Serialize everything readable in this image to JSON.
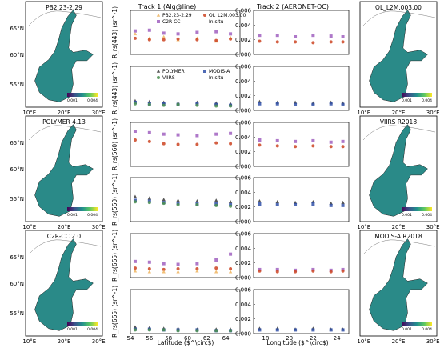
{
  "maps": [
    {
      "label": "PB2.23-2.29",
      "side": "left",
      "cb_min": "0.001",
      "cb_max": "0.004",
      "lat_labels": [
        "65°N",
        "60°N",
        "55°N"
      ],
      "lon_labels": [
        "10°E",
        "20°E",
        "30°E"
      ]
    },
    {
      "label": "POLYMER 4.13",
      "side": "left",
      "cb_min": "0.001",
      "cb_max": "0.004",
      "lat_labels": [
        "65°N",
        "60°N",
        "55°N"
      ],
      "lon_labels": [
        "10°E",
        "20°E",
        "30°E"
      ]
    },
    {
      "label": "C2R-CC 2.0",
      "side": "left",
      "cb_min": "0.001",
      "cb_max": "0.004",
      "lat_labels": [
        "65°N",
        "60°N",
        "55°N"
      ],
      "lon_labels": [
        "10°E",
        "20°E",
        "30°E"
      ]
    },
    {
      "label": "OL_L2M.003.00",
      "side": "right",
      "cb_min": "0.001",
      "cb_max": "0.004",
      "lat_labels": [
        "65°N",
        "60°N",
        "55°N"
      ],
      "lon_labels": [
        "10°E",
        "20°E",
        "30°E"
      ]
    },
    {
      "label": "VIIRS R2018",
      "side": "right",
      "cb_min": "0.001",
      "cb_max": "0.004",
      "lat_labels": [
        "65°N",
        "60°N",
        "55°N"
      ],
      "lon_labels": [
        "10°E",
        "20°E",
        "30°E"
      ]
    },
    {
      "label": "MODIS-A R2018",
      "side": "right",
      "cb_min": "0.001",
      "cb_max": "0.004",
      "lat_labels": [
        "65°N",
        "60°N",
        "55°N"
      ],
      "lon_labels": [
        "10°E",
        "20°E",
        "30°E"
      ]
    }
  ],
  "track1_title": "Track 1 (Alg@line)",
  "track2_title": "Track 2 (AERONET-OC)",
  "track1_xlabel": "Latitude ($^\\circ$)",
  "track2_xlabel": "Longitude ($^\\circ$)",
  "colors": {
    "pb": "#f0b868",
    "olci": "#cc4422",
    "c2r": "#a060c0",
    "polymer": "#444444",
    "modis": "#3050a8",
    "viirs": "#4a8f50",
    "insitu": "#000000",
    "map_water": "#2a8a88",
    "map_land": "#ffffff"
  },
  "chart_data": {
    "type": "scatter",
    "ylim": [
      0,
      0.006
    ],
    "track1_xlim": [
      54,
      65.5
    ],
    "track2_xlim": [
      17,
      25
    ],
    "track1_xticks": [
      "54",
      "56",
      "58",
      "60",
      "62",
      "64"
    ],
    "track2_xticks": [
      "18",
      "20",
      "22",
      "24"
    ],
    "yticks": [
      "0.000",
      "0.002",
      "0.004",
      "0.006"
    ],
    "panels": [
      {
        "ylabel": "R_rs(443) (sr^-1)",
        "legend": [
          {
            "name": "PB2.23-2.29",
            "marker": "triangle",
            "color": "#f0b868"
          },
          {
            "name": "OL_L2M.003.00",
            "marker": "circle",
            "color": "#cc4422"
          },
          {
            "name": "C2R-CC",
            "marker": "square",
            "color": "#a060c0"
          },
          {
            "name": "In situ",
            "marker": "star",
            "color": "#000000"
          }
        ],
        "track1": [
          {
            "name": "PB2.23-2.29",
            "x": [
              54.5,
              56,
              57.5,
              59,
              61,
              63,
              64.5
            ],
            "y": [
              0.0028,
              0.0022,
              0.0024,
              0.002,
              0.0022,
              0.0018,
              0.0023
            ]
          },
          {
            "name": "OL_L2M.003.00",
            "x": [
              54.5,
              56,
              57.5,
              59,
              61,
              63,
              64.5
            ],
            "y": [
              0.0022,
              0.002,
              0.002,
              0.0021,
              0.002,
              0.0019,
              0.0021
            ]
          },
          {
            "name": "C2R-CC",
            "x": [
              54.5,
              56,
              57.5,
              59,
              61,
              63,
              64.5
            ],
            "y": [
              0.0032,
              0.0033,
              0.0029,
              0.0028,
              0.003,
              0.0031,
              0.0028
            ]
          },
          {
            "name": "In situ",
            "x": [
              55,
              56.5
            ],
            "y": [
              0.003,
              0.0032
            ]
          }
        ],
        "track2": [
          {
            "name": "C2R-CC",
            "x": [
              17.5,
              19,
              20.5,
              22,
              23.5,
              24.5
            ],
            "y": [
              0.0026,
              0.0026,
              0.0024,
              0.0026,
              0.0025,
              0.0024
            ]
          },
          {
            "name": "OL_L2M.003.00",
            "x": [
              17.5,
              19,
              20.5,
              22,
              23.5,
              24.5
            ],
            "y": [
              0.0018,
              0.0017,
              0.0017,
              0.0016,
              0.0017,
              0.0017
            ]
          }
        ]
      },
      {
        "ylabel": "R_rs(443) (sr^-1)",
        "legend": [
          {
            "name": "POLYMER",
            "marker": "triangle",
            "color": "#444444"
          },
          {
            "name": "MODIS-A",
            "marker": "square",
            "color": "#3050a8"
          },
          {
            "name": "VIIRS",
            "marker": "circle",
            "color": "#4a8f50"
          },
          {
            "name": "In situ",
            "marker": "star",
            "color": "#000000"
          }
        ],
        "track1": [
          {
            "name": "POLYMER",
            "x": [
              54.5,
              56,
              57.5,
              59,
              61,
              63,
              64.5
            ],
            "y": [
              0.0013,
              0.0012,
              0.0011,
              0.001,
              0.0011,
              0.001,
              0.0009
            ]
          },
          {
            "name": "MODIS-A",
            "x": [
              54.5,
              56,
              57.5,
              59,
              61,
              63,
              64.5
            ],
            "y": [
              0.0011,
              0.0009,
              0.0009,
              0.0008,
              0.0009,
              0.0008,
              0.0007
            ]
          },
          {
            "name": "VIIRS",
            "x": [
              54.5,
              56,
              57.5,
              59,
              61,
              63,
              64.5
            ],
            "y": [
              0.0009,
              0.0008,
              0.0007,
              0.0008,
              0.0007,
              0.0006,
              0.0006
            ]
          },
          {
            "name": "In situ",
            "x": [
              55,
              56.5
            ],
            "y": [
              0.0012,
              0.0013
            ]
          }
        ],
        "track2": [
          {
            "name": "POLYMER",
            "x": [
              17.5,
              19,
              20.5,
              22,
              23.5,
              24.5
            ],
            "y": [
              0.0012,
              0.0011,
              0.0011,
              0.001,
              0.0011,
              0.001
            ]
          },
          {
            "name": "MODIS-A",
            "x": [
              17.5,
              19,
              20.5,
              22,
              23.5,
              24.5
            ],
            "y": [
              0.0009,
              0.0009,
              0.0008,
              0.0008,
              0.0009,
              0.0008
            ]
          }
        ]
      },
      {
        "ylabel": "R_rs(560) (sr^-1)",
        "legend": [],
        "track1": [
          {
            "name": "C2R-CC",
            "x": [
              54.5,
              56,
              57.5,
              59,
              61,
              63,
              64.5
            ],
            "y": [
              0.0048,
              0.0046,
              0.0044,
              0.0043,
              0.0042,
              0.0044,
              0.0045
            ]
          },
          {
            "name": "OL_L2M.003.00",
            "x": [
              54.5,
              56,
              57.5,
              59,
              61,
              63,
              64.5
            ],
            "y": [
              0.0036,
              0.0034,
              0.0031,
              0.003,
              0.003,
              0.0032,
              0.0031
            ]
          },
          {
            "name": "In situ",
            "x": [
              55,
              56.5
            ],
            "y": [
              0.0045,
              0.0041
            ]
          }
        ],
        "track2": [
          {
            "name": "C2R-CC",
            "x": [
              17.5,
              19,
              20.5,
              22,
              23.5,
              24.5
            ],
            "y": [
              0.0036,
              0.0035,
              0.0034,
              0.0035,
              0.0033,
              0.0034
            ]
          },
          {
            "name": "OL_L2M.003.00",
            "x": [
              17.5,
              19,
              20.5,
              22,
              23.5,
              24.5
            ],
            "y": [
              0.0029,
              0.0028,
              0.0027,
              0.0028,
              0.0027,
              0.0027
            ]
          }
        ]
      },
      {
        "ylabel": "R_rs(560) (sr^-1)",
        "legend": [],
        "track1": [
          {
            "name": "POLYMER",
            "x": [
              54.5,
              56,
              57.5,
              59,
              61,
              63,
              64.5
            ],
            "y": [
              0.0034,
              0.0032,
              0.003,
              0.0029,
              0.0028,
              0.0029,
              0.0027
            ]
          },
          {
            "name": "MODIS-A",
            "x": [
              54.5,
              56,
              57.5,
              59,
              61,
              63,
              64.5
            ],
            "y": [
              0.0029,
              0.0028,
              0.0026,
              0.0025,
              0.0024,
              0.0024,
              0.0023
            ]
          },
          {
            "name": "VIIRS",
            "x": [
              54.5,
              56,
              57.5,
              59,
              61,
              63,
              64.5
            ],
            "y": [
              0.0027,
              0.0026,
              0.0025,
              0.0023,
              0.0023,
              0.0022,
              0.0021
            ]
          },
          {
            "name": "In situ",
            "x": [
              55,
              56.5
            ],
            "y": [
              0.0037,
              0.0034
            ]
          }
        ],
        "track2": [
          {
            "name": "POLYMER",
            "x": [
              17.5,
              19,
              20.5,
              22,
              23.5,
              24.5
            ],
            "y": [
              0.0028,
              0.0027,
              0.0026,
              0.0027,
              0.0025,
              0.0026
            ]
          },
          {
            "name": "MODIS-A",
            "x": [
              17.5,
              19,
              20.5,
              22,
              23.5,
              24.5
            ],
            "y": [
              0.0024,
              0.0023,
              0.0023,
              0.0024,
              0.0022,
              0.0022
            ]
          }
        ]
      },
      {
        "ylabel": "R_rs(665) (sr^-1)",
        "legend": [],
        "track1": [
          {
            "name": "C2R-CC",
            "x": [
              54.5,
              56,
              57.5,
              59,
              61,
              63,
              64.5
            ],
            "y": [
              0.0022,
              0.0021,
              0.0019,
              0.0018,
              0.0019,
              0.0024,
              0.0032
            ]
          },
          {
            "name": "OL_L2M.003.00",
            "x": [
              54.5,
              56,
              57.5,
              59,
              61,
              63,
              64.5
            ],
            "y": [
              0.0013,
              0.0012,
              0.0011,
              0.0012,
              0.0012,
              0.0013,
              0.0012
            ]
          },
          {
            "name": "PB2.23-2.29",
            "x": [
              54.5,
              56,
              57.5,
              59,
              61,
              63,
              64.5
            ],
            "y": [
              0.0009,
              0.0008,
              0.0008,
              0.0008,
              0.0009,
              0.0008,
              0.0008
            ]
          },
          {
            "name": "In situ",
            "x": [
              55,
              56.5
            ],
            "y": [
              0.0013,
              0.0011
            ]
          }
        ],
        "track2": [
          {
            "name": "C2R-CC",
            "x": [
              17.5,
              19,
              20.5,
              22,
              23.5,
              24.5
            ],
            "y": [
              0.0011,
              0.0011,
              0.001,
              0.0011,
              0.001,
              0.0011
            ]
          },
          {
            "name": "OL_L2M.003.00",
            "x": [
              17.5,
              19,
              20.5,
              22,
              23.5,
              24.5
            ],
            "y": [
              0.0009,
              0.0008,
              0.0008,
              0.0009,
              0.0008,
              0.0009
            ]
          }
        ]
      },
      {
        "ylabel": "R_rs(665) (sr^-1)",
        "legend": [],
        "track1": [
          {
            "name": "POLYMER",
            "x": [
              54.5,
              56,
              57.5,
              59,
              61,
              63,
              64.5
            ],
            "y": [
              0.0009,
              0.0008,
              0.0007,
              0.0007,
              0.0006,
              0.0006,
              0.0006
            ]
          },
          {
            "name": "MODIS-A",
            "x": [
              54.5,
              56,
              57.5,
              59,
              61,
              63,
              64.5
            ],
            "y": [
              0.0006,
              0.0006,
              0.0005,
              0.0005,
              0.0005,
              0.0004,
              0.0004
            ]
          },
          {
            "name": "VIIRS",
            "x": [
              54.5,
              56,
              57.5,
              59,
              61,
              63,
              64.5
            ],
            "y": [
              0.0005,
              0.0005,
              0.0005,
              0.0004,
              0.0004,
              0.0004,
              0.0004
            ]
          },
          {
            "name": "In situ",
            "x": [
              55,
              56.5
            ],
            "y": [
              0.0008,
              0.0007
            ]
          }
        ],
        "track2": [
          {
            "name": "POLYMER",
            "x": [
              17.5,
              19,
              20.5,
              22,
              23.5,
              24.5
            ],
            "y": [
              0.0007,
              0.0007,
              0.0006,
              0.0007,
              0.0006,
              0.0006
            ]
          },
          {
            "name": "MODIS-A",
            "x": [
              17.5,
              19,
              20.5,
              22,
              23.5,
              24.5
            ],
            "y": [
              0.0005,
              0.0005,
              0.0005,
              0.0005,
              0.0005,
              0.0005
            ]
          }
        ]
      }
    ]
  }
}
